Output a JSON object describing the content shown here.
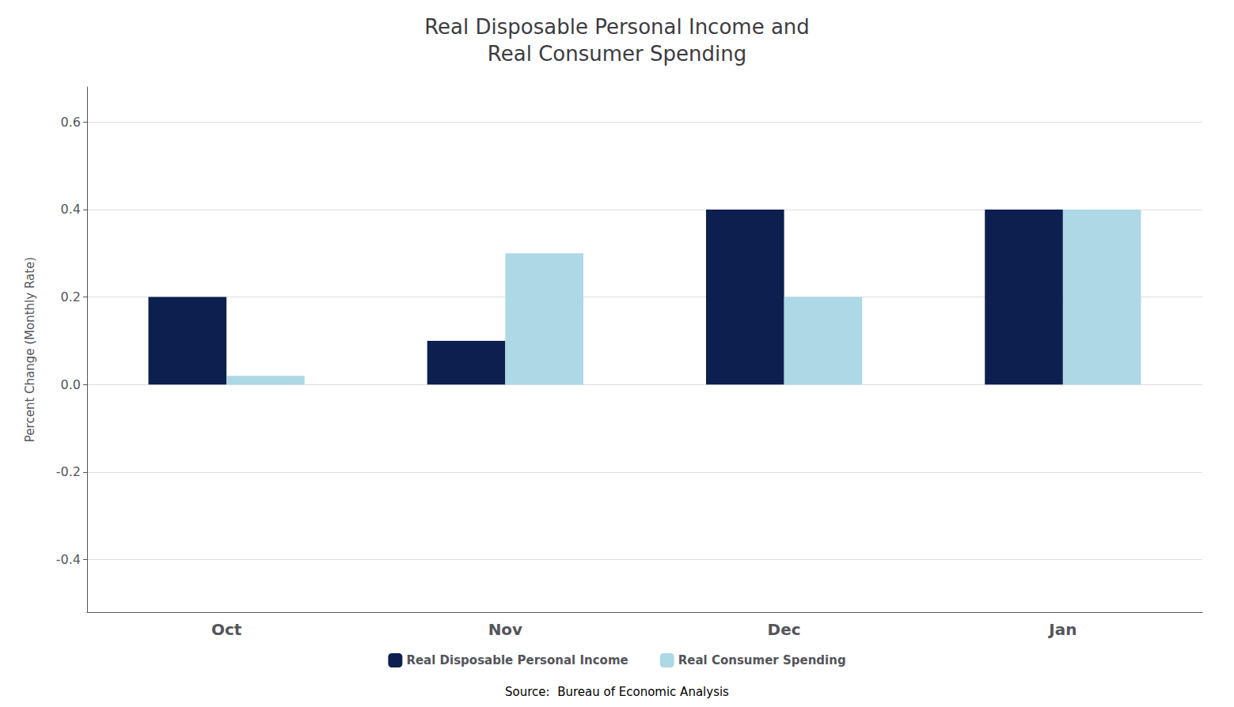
{
  "chart_data": {
    "type": "bar",
    "title": "Real Disposable Personal Income and\nReal Consumer Spending",
    "ylabel": "Percent Change (Monthly Rate)",
    "annotations": [
      "Source:  Bureau of Economic Analysis"
    ],
    "categories": [
      "Oct",
      "Nov",
      "Dec",
      "Jan"
    ],
    "series": [
      {
        "name": "Real Disposable Personal Income",
        "color": "#0D1F4E",
        "values": [
          0.2,
          0.1,
          0.4,
          0.4
        ]
      },
      {
        "name": "Real Consumer Spending",
        "color": "#ADD8E6",
        "values": [
          0.02,
          0.3,
          0.2,
          0.4
        ]
      }
    ],
    "ylim": [
      -0.52,
      0.68
    ],
    "yticks": [
      -0.4,
      -0.2,
      {
        "value": 0,
        "label": "0.0"
      },
      0.2,
      0.4,
      0.6
    ],
    "grid": true,
    "legend": "bottom"
  }
}
